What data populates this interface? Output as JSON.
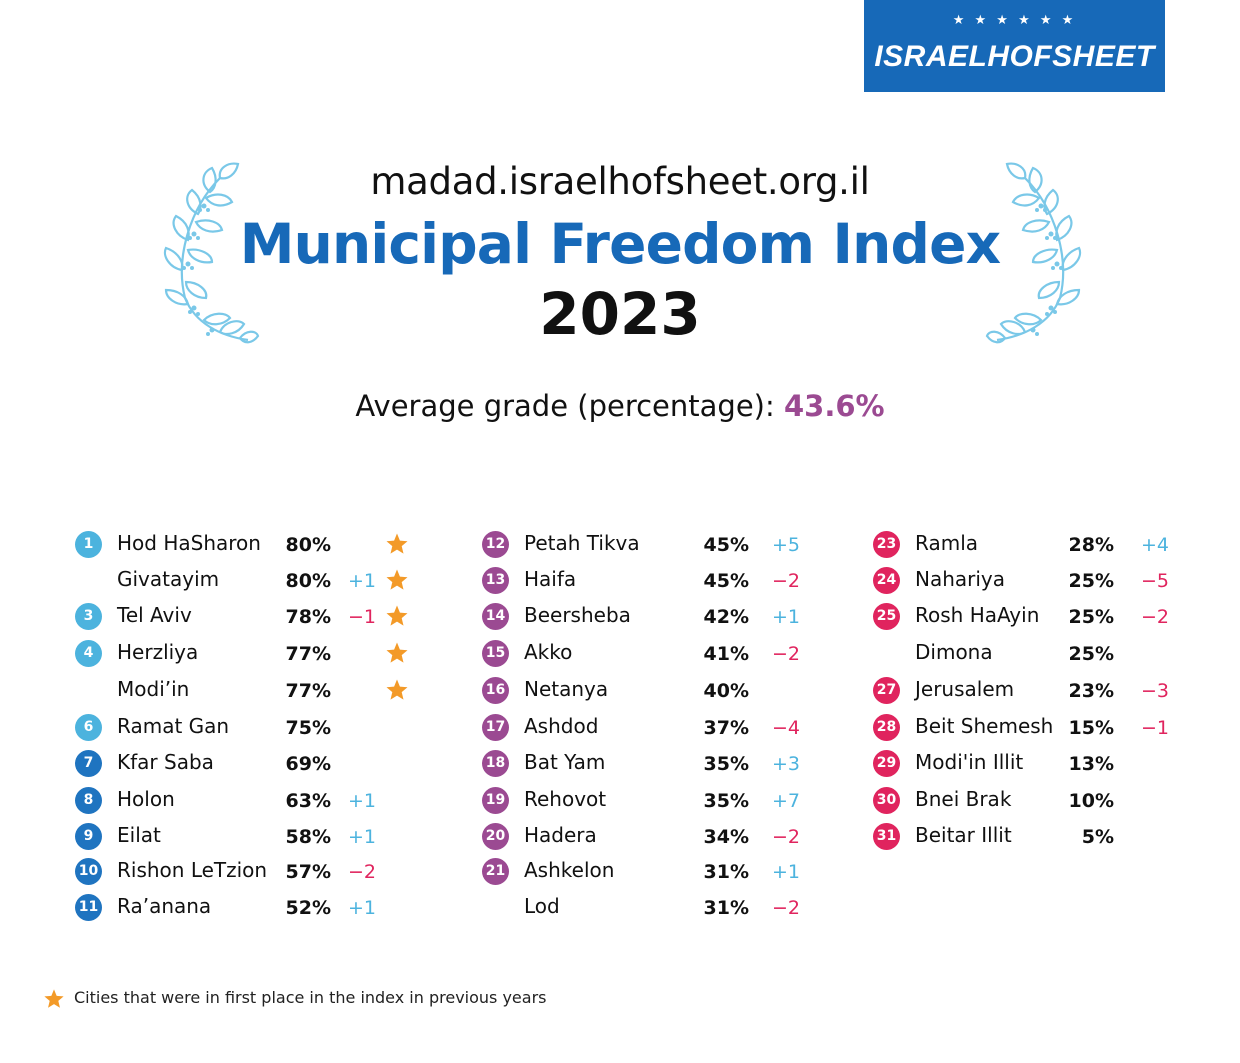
{
  "logo": {
    "stars": "★ ★ ★ ★ ★ ★",
    "text": "ISRAELHOFSHEET"
  },
  "header": {
    "url": "madad.israelhofsheet.org.il",
    "title": "Municipal Freedom Index",
    "year": "2023",
    "average_label": "Average grade (percentage):",
    "average_value": "43.6%"
  },
  "colors": {
    "brand_blue": "#1769b8",
    "badge_light_blue": "#4cb3de",
    "badge_mid_blue": "#1f74c0",
    "badge_purple": "#9b4a92",
    "badge_red": "#e0245e",
    "change_up": "#4cb3de",
    "change_down": "#e0245e",
    "star": "#f39a28"
  },
  "columns": [
    {
      "rows": [
        {
          "rank": "1",
          "city": "Hod HaSharon",
          "pct": "80%",
          "change": "",
          "star": true
        },
        {
          "rank": "",
          "city": "Givatayim",
          "pct": "80%",
          "change": "+1",
          "star": true
        },
        {
          "rank": "3",
          "city": "Tel Aviv",
          "pct": "78%",
          "change": "−1",
          "star": true
        },
        {
          "rank": "4",
          "city": "Herzliya",
          "pct": "77%",
          "change": "",
          "star": true
        },
        {
          "rank": "",
          "city": "Modi’in",
          "pct": "77%",
          "change": "",
          "star": true
        },
        {
          "rank": "6",
          "city": "Ramat Gan",
          "pct": "75%",
          "change": "",
          "star": false
        },
        {
          "rank": "7",
          "city": "Kfar Saba",
          "pct": "69%",
          "change": "",
          "star": false
        },
        {
          "rank": "8",
          "city": "Holon",
          "pct": "63%",
          "change": "+1",
          "star": false
        },
        {
          "rank": "9",
          "city": "Eilat",
          "pct": "58%",
          "change": "+1",
          "star": false
        },
        {
          "rank": "10",
          "city": "Rishon LeTzion",
          "pct": "57%",
          "change": "−2",
          "star": false
        },
        {
          "rank": "11",
          "city": "Ra’anana",
          "pct": "52%",
          "change": "+1",
          "star": false
        }
      ]
    },
    {
      "rows": [
        {
          "rank": "12",
          "city": "Petah Tikva",
          "pct": "45%",
          "change": "+5",
          "star": false
        },
        {
          "rank": "13",
          "city": "Haifa",
          "pct": "45%",
          "change": "−2",
          "star": false
        },
        {
          "rank": "14",
          "city": "Beersheba",
          "pct": "42%",
          "change": "+1",
          "star": false
        },
        {
          "rank": "15",
          "city": "Akko",
          "pct": "41%",
          "change": "−2",
          "star": false
        },
        {
          "rank": "16",
          "city": "Netanya",
          "pct": "40%",
          "change": "",
          "star": false
        },
        {
          "rank": "17",
          "city": "Ashdod",
          "pct": "37%",
          "change": "−4",
          "star": false
        },
        {
          "rank": "18",
          "city": "Bat Yam",
          "pct": "35%",
          "change": "+3",
          "star": false
        },
        {
          "rank": "19",
          "city": "Rehovot",
          "pct": "35%",
          "change": "+7",
          "star": false
        },
        {
          "rank": "20",
          "city": "Hadera",
          "pct": "34%",
          "change": "−2",
          "star": false
        },
        {
          "rank": "21",
          "city": "Ashkelon",
          "pct": "31%",
          "change": "+1",
          "star": false
        },
        {
          "rank": "",
          "city": "Lod",
          "pct": "31%",
          "change": "−2",
          "star": false
        }
      ]
    },
    {
      "rows": [
        {
          "rank": "23",
          "city": "Ramla",
          "pct": "28%",
          "change": "+4",
          "star": false
        },
        {
          "rank": "24",
          "city": "Nahariya",
          "pct": "25%",
          "change": "−5",
          "star": false
        },
        {
          "rank": "25",
          "city": "Rosh HaAyin",
          "pct": "25%",
          "change": "−2",
          "star": false
        },
        {
          "rank": "",
          "city": "Dimona",
          "pct": "25%",
          "change": "",
          "star": false
        },
        {
          "rank": "27",
          "city": "Jerusalem",
          "pct": "23%",
          "change": "−3",
          "star": false
        },
        {
          "rank": "28",
          "city": "Beit Shemesh",
          "pct": "15%",
          "change": "−1",
          "star": false
        },
        {
          "rank": "29",
          "city": "Modi'in Illit",
          "pct": "13%",
          "change": "",
          "star": false
        },
        {
          "rank": "30",
          "city": "Bnei Brak",
          "pct": "10%",
          "change": "",
          "star": false
        },
        {
          "rank": "31",
          "city": "Beitar Illit",
          "pct": "5%",
          "change": "",
          "star": false
        }
      ]
    }
  ],
  "legend": {
    "text": "Cities that were in first place in the index in previous years"
  }
}
